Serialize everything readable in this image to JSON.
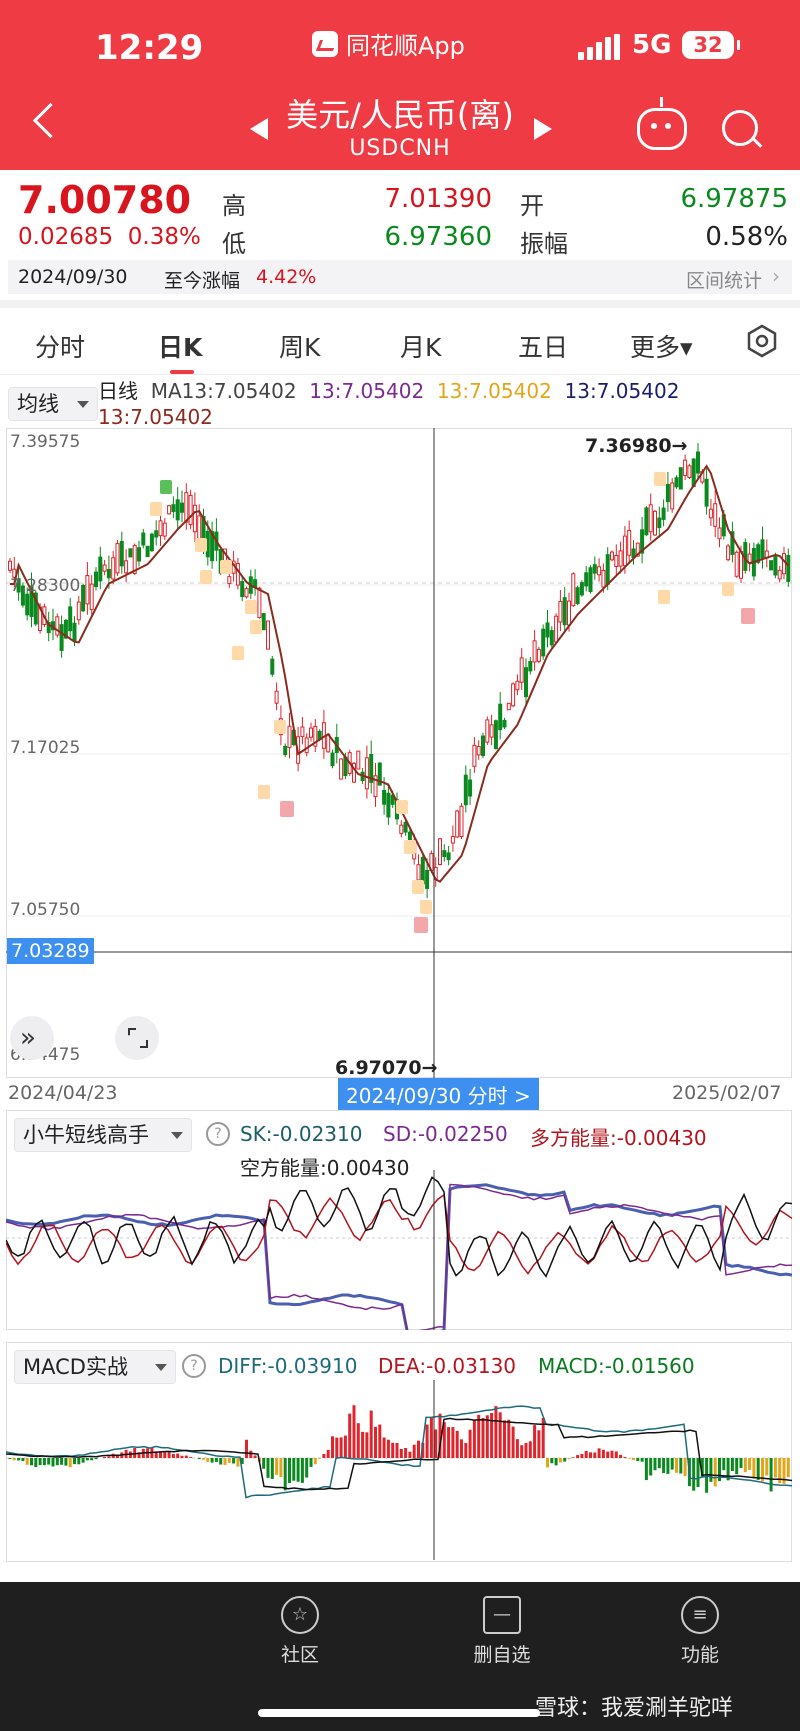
{
  "status_bar": {
    "time": "12:29",
    "app_name": "同花顺App",
    "network": "5G",
    "battery": "32"
  },
  "header": {
    "title": "美元/人民币(离)",
    "subtitle": "USDCNH"
  },
  "quote": {
    "price": "7.00780",
    "change": "0.02685",
    "change_pct": "0.38%",
    "high_label": "高",
    "high": "7.01390",
    "low_label": "低",
    "low": "6.97360",
    "open_label": "开",
    "open": "6.97875",
    "amp_label": "振幅",
    "amplitude": "0.58%",
    "date": "2024/09/30",
    "since_label": "至今涨幅",
    "since_value": "4.42%",
    "range_stats": "区间统计"
  },
  "tabs": [
    {
      "label": "分时"
    },
    {
      "label": "日K"
    },
    {
      "label": "周K"
    },
    {
      "label": "月K"
    },
    {
      "label": "五日"
    },
    {
      "label": "更多▾"
    }
  ],
  "main_chart": {
    "indicator_select": "均线",
    "ma_title": "日线",
    "ma_labels": [
      "MA13:7.05402",
      "13:7.05402",
      "13:7.05402",
      "13:7.05402",
      "13:7.05402"
    ],
    "y_ticks": [
      "7.39575",
      "7.28300",
      "7.17025",
      "7.05750",
      "6.94475"
    ],
    "crosshair_value": "7.03289",
    "max_marker": "7.36980→",
    "min_marker": "6.97070→",
    "x_start": "2024/04/23",
    "x_end": "2025/02/07",
    "crosshair_date": "2024/09/30 分时 >",
    "colors": {
      "up": "#e0242c",
      "down": "#0a8a1e",
      "ma": "#8a2b1e",
      "sub_purple": "#7b2a90",
      "sub_yellow": "#e3a51a",
      "sub_navy": "#1a1f6b"
    }
  },
  "chart_data": {
    "type": "candlestick",
    "x_start": "2024/04/23",
    "x_end": "2025/02/07",
    "ylim": [
      6.94475,
      7.39575
    ],
    "max": 7.3698,
    "min": 6.9707
  },
  "indicator1": {
    "name": "小牛短线高手",
    "sk": "SK:-0.02310",
    "sd": "SD:-0.02250",
    "bull": "多方能量:-0.00430",
    "bear": "空方能量:0.00430"
  },
  "indicator2": {
    "name": "MACD实战",
    "diff": "DIFF:-0.03910",
    "dea": "DEA:-0.03130",
    "macd": "MACD:-0.01560"
  },
  "bottom_nav": [
    {
      "label": "社区",
      "icon": "star-icon"
    },
    {
      "label": "删自选",
      "icon": "minus-icon"
    },
    {
      "label": "功能",
      "icon": "menu-icon"
    }
  ],
  "watermark": "雪球：我爱涮羊驼咩"
}
